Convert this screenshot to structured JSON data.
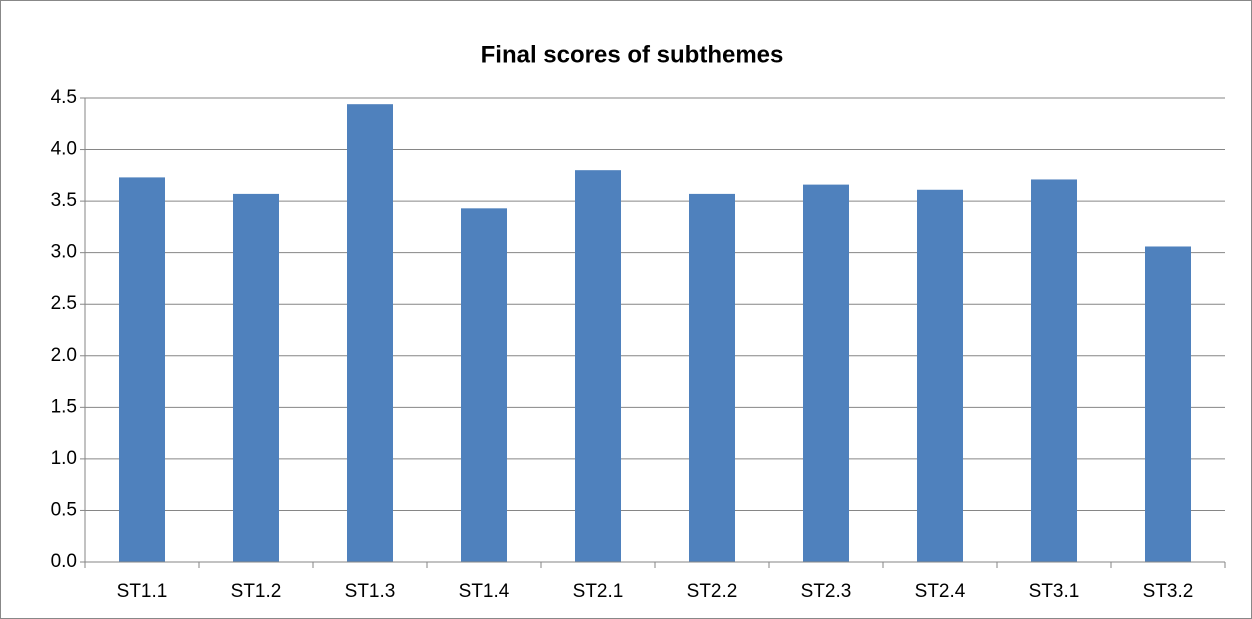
{
  "chart_data": {
    "type": "bar",
    "title": "Final scores of subthemes",
    "categories": [
      "ST1.1",
      "ST1.2",
      "ST1.3",
      "ST1.4",
      "ST2.1",
      "ST2.2",
      "ST2.3",
      "ST2.4",
      "ST3.1",
      "ST3.2"
    ],
    "values": [
      3.73,
      3.57,
      4.44,
      3.43,
      3.8,
      3.57,
      3.66,
      3.61,
      3.71,
      3.06
    ],
    "color": "#4f81bd",
    "ylim": [
      0,
      4.5
    ],
    "yticks": [
      {
        "value": 0,
        "label": "0.0"
      },
      0.5,
      {
        "value": 1,
        "label": "1.0"
      },
      1.5,
      {
        "value": 2,
        "label": "2.0"
      },
      2.5,
      {
        "value": 3,
        "label": "3.0"
      },
      3.5,
      {
        "value": 4,
        "label": "4.0"
      },
      4.5
    ],
    "grid": true
  }
}
